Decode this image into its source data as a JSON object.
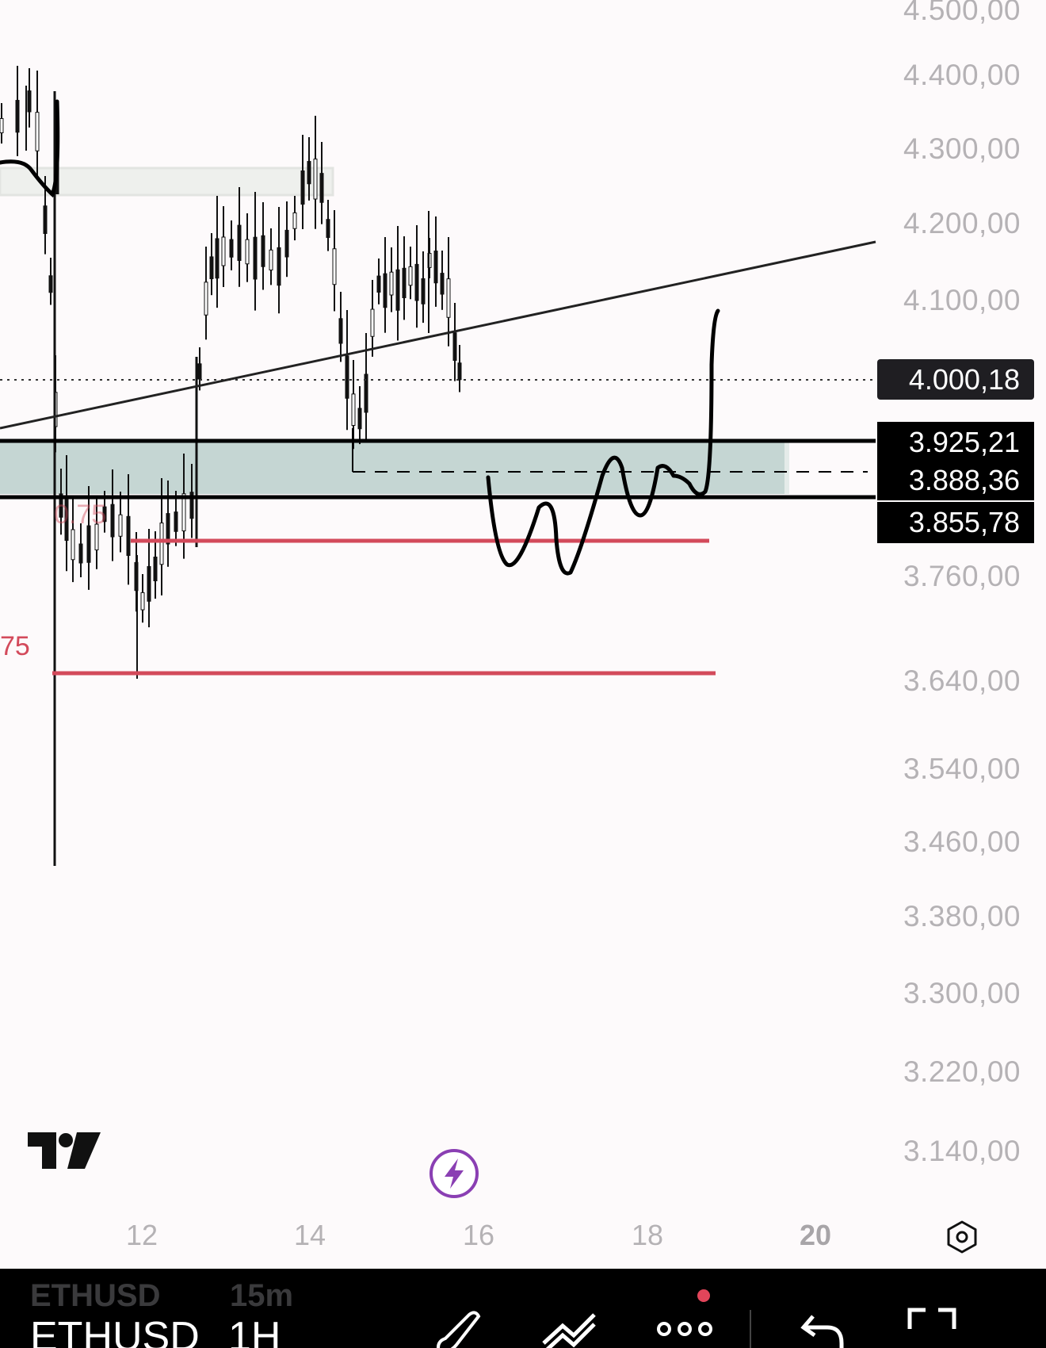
{
  "colors": {
    "background": "#fdfafb",
    "candle": "#111111",
    "zone_fill": "#c5d6d3",
    "supply_zone_fill": "#eef0ed",
    "red_line": "#d34a5b",
    "axis_text": "#b5b2b5",
    "current_tag_bg": "#1f1e22",
    "bolt_accent": "#8a3fb3"
  },
  "price_axis": {
    "labels": [
      "4.500,00",
      "4.400,00",
      "4.300,00",
      "4.200,00",
      "4.100,00",
      "3.760,00",
      "3.640,00",
      "3.540,00",
      "3.460,00",
      "3.380,00",
      "3.300,00",
      "3.220,00",
      "3.140,00"
    ]
  },
  "price_tags": {
    "current": "4.000,18",
    "zone_top": "3.925,21",
    "zone_mid": "3.888,36",
    "zone_bottom": "3.855,78"
  },
  "time_axis": {
    "labels": [
      "12",
      "14",
      "16",
      "18",
      "20"
    ]
  },
  "annotations": {
    "fib_upper": "0.75",
    "fib_lower": "75"
  },
  "bottom_bar": {
    "ghost_symbol": "ETHUSD",
    "ghost_interval": "15m",
    "symbol": "ETHUSD",
    "interval": "1H",
    "icons": [
      "brush-icon",
      "trend-line-icon",
      "more-icon",
      "undo-icon",
      "fullscreen-icon"
    ]
  },
  "icons": {
    "logo": "tradingview-logo",
    "quick_action": "lightning-bolt-icon",
    "settings": "settings-hexagon-icon"
  }
}
